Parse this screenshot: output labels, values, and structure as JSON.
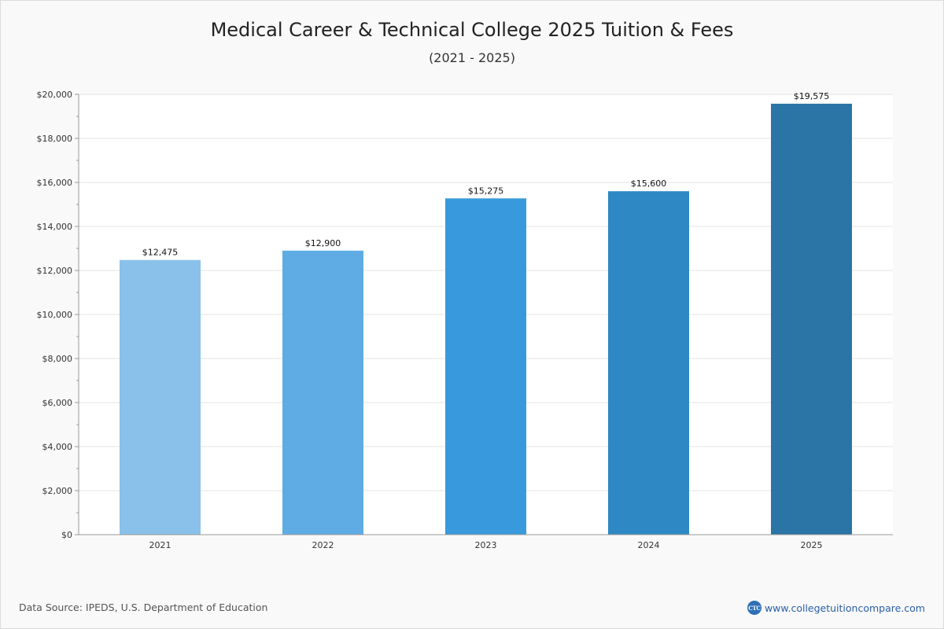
{
  "chart_data": {
    "type": "bar",
    "title": "Medical Career & Technical College 2025 Tuition & Fees",
    "subtitle": "(2021 - 2025)",
    "categories": [
      "2021",
      "2022",
      "2023",
      "2024",
      "2025"
    ],
    "values": [
      12475,
      12900,
      15275,
      15600,
      19575
    ],
    "value_labels": [
      "$12,475",
      "$12,900",
      "$15,275",
      "$15,600",
      "$19,575"
    ],
    "bar_colors": [
      "#89c1ea",
      "#5eace3",
      "#389adc",
      "#2e88c3",
      "#2a74a6"
    ],
    "ylim": [
      0,
      20000
    ],
    "yticks": [
      0,
      2000,
      4000,
      6000,
      8000,
      10000,
      12000,
      14000,
      16000,
      18000,
      20000
    ],
    "ytick_labels": [
      "$0",
      "$2,000",
      "$4,000",
      "$6,000",
      "$8,000",
      "$10,000",
      "$12,000",
      "$14,000",
      "$16,000",
      "$18,000",
      "$20,000"
    ],
    "xlabel": "",
    "ylabel": "",
    "grid": true,
    "legend": "none"
  },
  "footer": {
    "source": "Data Source: IPEDS, U.S. Department of Education",
    "brand_logo_text": "CTC",
    "brand_url": "www.collegetuitioncompare.com"
  }
}
